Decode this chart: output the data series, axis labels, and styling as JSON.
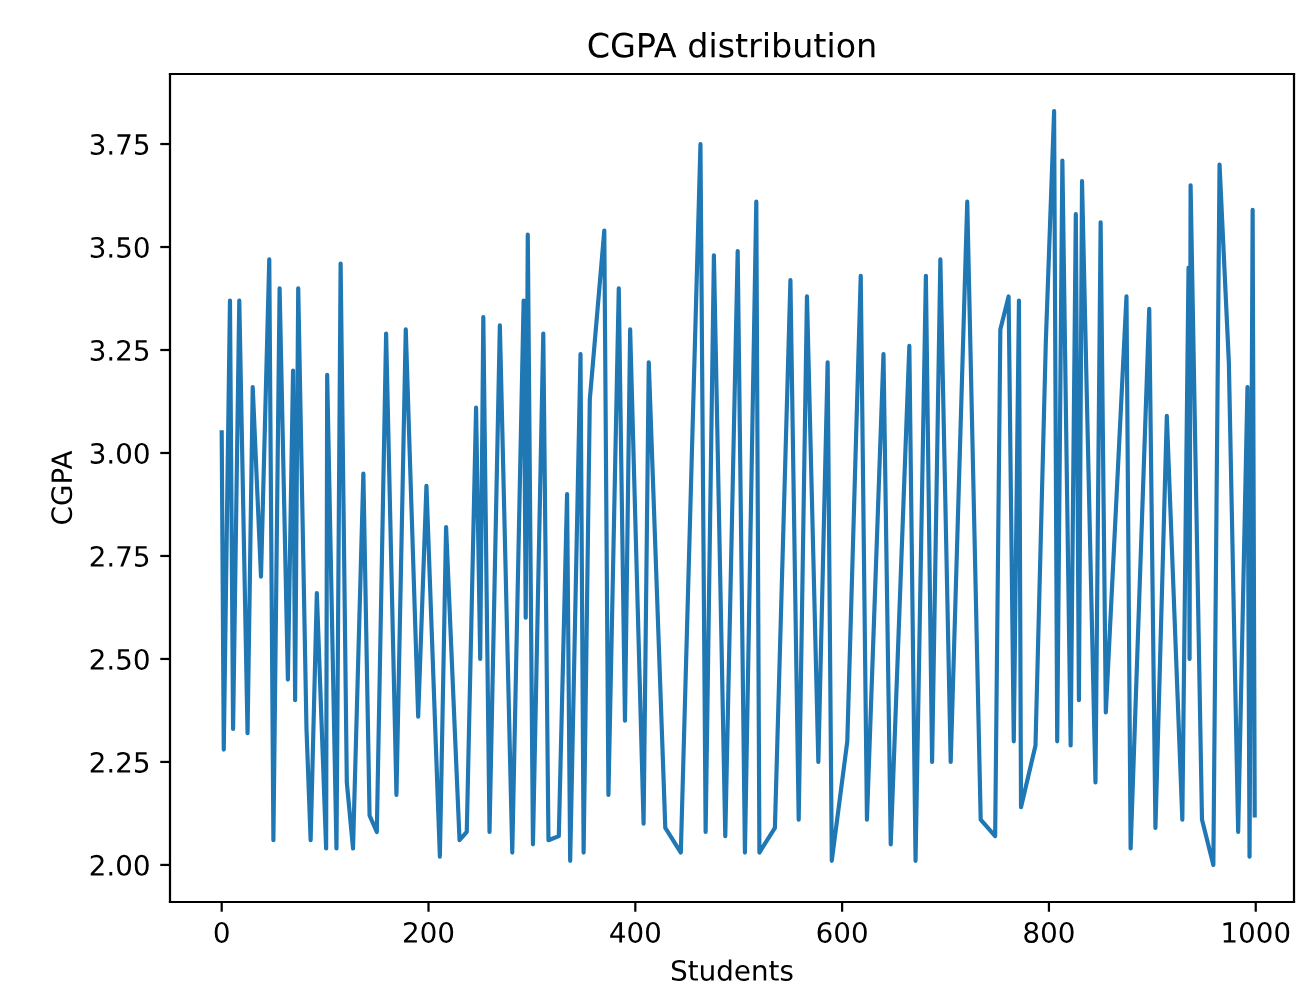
{
  "chart_data": {
    "type": "line",
    "title": "CGPA distribution",
    "xlabel": "Students",
    "ylabel": "CGPA",
    "x": [
      0,
      2,
      8,
      11,
      17,
      25,
      30,
      38,
      46,
      50,
      56,
      64,
      69,
      71,
      74,
      82,
      86,
      92,
      101,
      102,
      111,
      115,
      121,
      127,
      137,
      143,
      150,
      159,
      169,
      178,
      190,
      198,
      211,
      217,
      230,
      237,
      246,
      250,
      253,
      259,
      269,
      281,
      292,
      294,
      296,
      301,
      311,
      316,
      326,
      334,
      337,
      347,
      350,
      356,
      370,
      374,
      384,
      390,
      395,
      408,
      413,
      429,
      444,
      463,
      468,
      476,
      487,
      499,
      506,
      517,
      520,
      535,
      550,
      558,
      566,
      577,
      586,
      590,
      605,
      618,
      624,
      640,
      647,
      665,
      671,
      681,
      687,
      695,
      705,
      721,
      734,
      748,
      753,
      761,
      766,
      771,
      773,
      787,
      797,
      805,
      808,
      813,
      821,
      826,
      829,
      832,
      845,
      850,
      855,
      875,
      879,
      897,
      903,
      914,
      929,
      935,
      936,
      937,
      948,
      959,
      965,
      974,
      983,
      992,
      994,
      997,
      999
    ],
    "series": [
      {
        "color": "#1f77b4",
        "values": [
          3.05,
          2.28,
          3.37,
          2.33,
          3.37,
          2.32,
          3.16,
          2.7,
          3.47,
          2.06,
          3.4,
          2.45,
          3.2,
          2.4,
          3.4,
          2.33,
          2.06,
          2.66,
          2.04,
          3.19,
          2.04,
          3.46,
          2.2,
          2.04,
          2.95,
          2.12,
          2.08,
          3.29,
          2.17,
          3.3,
          2.36,
          2.92,
          2.02,
          2.82,
          2.06,
          2.08,
          3.11,
          2.5,
          3.33,
          2.08,
          3.31,
          2.03,
          3.37,
          2.6,
          3.53,
          2.05,
          3.29,
          2.06,
          2.07,
          2.9,
          2.01,
          3.24,
          2.03,
          3.13,
          3.54,
          2.17,
          3.4,
          2.35,
          3.3,
          2.1,
          3.22,
          2.09,
          2.03,
          3.75,
          2.08,
          3.48,
          2.07,
          3.49,
          2.03,
          3.61,
          2.03,
          2.09,
          3.42,
          2.11,
          3.38,
          2.25,
          3.22,
          2.01,
          2.3,
          3.43,
          2.11,
          3.24,
          2.05,
          3.26,
          2.01,
          3.43,
          2.25,
          3.47,
          2.25,
          3.61,
          2.11,
          2.07,
          3.3,
          3.38,
          2.3,
          3.37,
          2.14,
          2.29,
          3.27,
          3.83,
          2.3,
          3.71,
          2.29,
          3.58,
          2.4,
          3.66,
          2.2,
          3.56,
          2.37,
          3.38,
          2.04,
          3.35,
          2.09,
          3.09,
          2.11,
          3.45,
          2.5,
          3.65,
          2.11,
          2.0,
          3.7,
          3.22,
          2.08,
          3.16,
          2.02,
          3.59,
          2.12
        ]
      }
    ],
    "xlim": [
      -50,
      1037
    ],
    "ylim": [
      1.91,
      3.92
    ],
    "xticks": [
      0,
      200,
      400,
      600,
      800,
      1000
    ],
    "yticks": [
      {
        "value": 2.0,
        "label": "2.00"
      },
      {
        "value": 2.25,
        "label": "2.25"
      },
      {
        "value": 2.5,
        "label": "2.50"
      },
      {
        "value": 2.75,
        "label": "2.75"
      },
      {
        "value": 3.0,
        "label": "3.00"
      },
      {
        "value": 3.25,
        "label": "3.25"
      },
      {
        "value": 3.5,
        "label": "3.50"
      },
      {
        "value": 3.75,
        "label": "3.75"
      }
    ],
    "grid": false,
    "legend": false
  }
}
